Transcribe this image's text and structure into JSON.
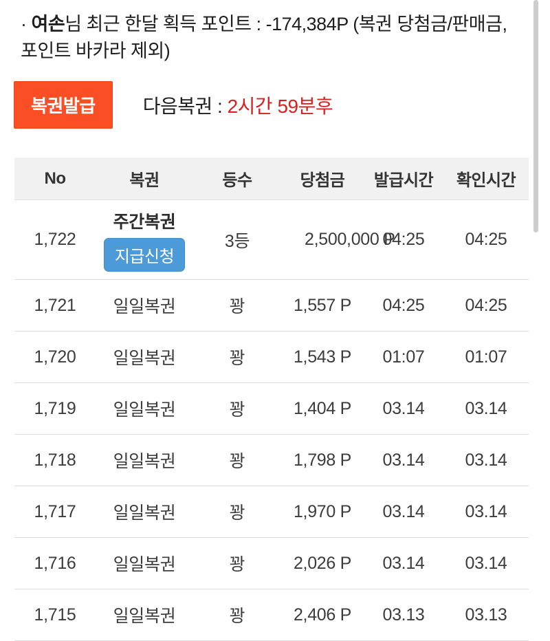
{
  "colors": {
    "accent_orange": "#fa4e24",
    "accent_blue": "#4d9ad8",
    "countdown_red": "#d92020"
  },
  "notice": {
    "bullet": "·",
    "username": "여손",
    "text": "님 최근 한달 획득 포인트 : -174,384P (복권 당첨금/판매금, 포인트 바카라 제외)"
  },
  "issue": {
    "button_label": "복권발급",
    "next_label": "다음복권 : ",
    "countdown": "2시간 59분후"
  },
  "table": {
    "headers": [
      "No",
      "복권",
      "등수",
      "당첨금",
      "발급시간",
      "확인시간"
    ],
    "rows": [
      {
        "no": "1,722",
        "lottery": "주간복권",
        "badge": "지급신청",
        "rank": "3등",
        "prize": "2,500,000 P",
        "issued": "04:25",
        "confirmed": "04:25"
      },
      {
        "no": "1,721",
        "lottery": "일일복권",
        "rank": "꽝",
        "prize": "1,557 P",
        "issued": "04:25",
        "confirmed": "04:25"
      },
      {
        "no": "1,720",
        "lottery": "일일복권",
        "rank": "꽝",
        "prize": "1,543 P",
        "issued": "01:07",
        "confirmed": "01:07"
      },
      {
        "no": "1,719",
        "lottery": "일일복권",
        "rank": "꽝",
        "prize": "1,404 P",
        "issued": "03.14",
        "confirmed": "03.14"
      },
      {
        "no": "1,718",
        "lottery": "일일복권",
        "rank": "꽝",
        "prize": "1,798 P",
        "issued": "03.14",
        "confirmed": "03.14"
      },
      {
        "no": "1,717",
        "lottery": "일일복권",
        "rank": "꽝",
        "prize": "1,970 P",
        "issued": "03.14",
        "confirmed": "03.14"
      },
      {
        "no": "1,716",
        "lottery": "일일복권",
        "rank": "꽝",
        "prize": "2,026 P",
        "issued": "03.14",
        "confirmed": "03.14"
      },
      {
        "no": "1,715",
        "lottery": "일일복권",
        "rank": "꽝",
        "prize": "2,406 P",
        "issued": "03.13",
        "confirmed": "03.13"
      }
    ]
  }
}
